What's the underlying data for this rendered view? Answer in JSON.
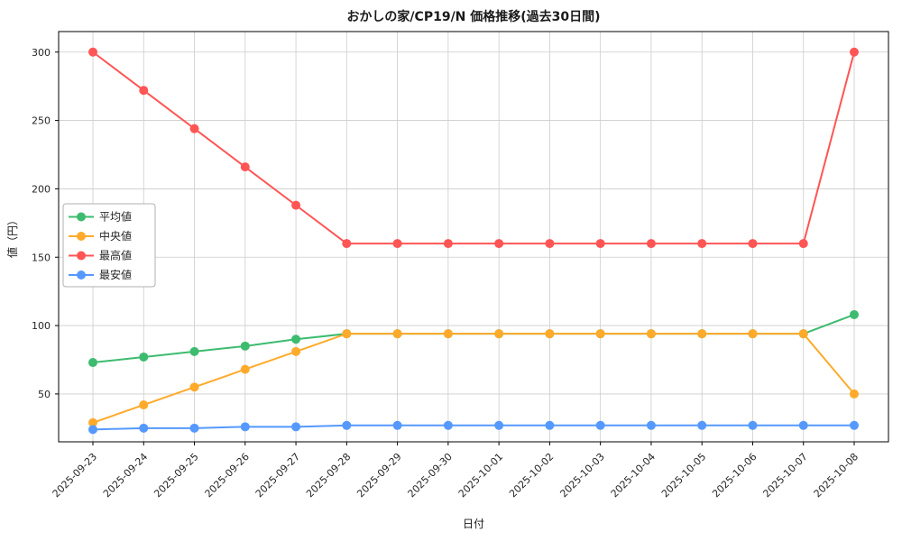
{
  "chart_data": {
    "type": "line",
    "title": "おかしの家/CP19/N 価格推移(過去30日間)",
    "xlabel": "日付",
    "ylabel": "値（円）",
    "x": [
      "2025-09-23",
      "2025-09-24",
      "2025-09-25",
      "2025-09-26",
      "2025-09-27",
      "2025-09-28",
      "2025-09-29",
      "2025-09-30",
      "2025-10-01",
      "2025-10-02",
      "2025-10-03",
      "2025-10-04",
      "2025-10-05",
      "2025-10-06",
      "2025-10-07",
      "2025-10-08"
    ],
    "series": [
      {
        "name": "平均値",
        "color": "#3dbb6f",
        "values": [
          73,
          77,
          81,
          85,
          90,
          94,
          94,
          94,
          94,
          94,
          94,
          94,
          94,
          94,
          94,
          108
        ]
      },
      {
        "name": "中央値",
        "color": "#ffaa2b",
        "values": [
          29,
          42,
          55,
          68,
          81,
          94,
          94,
          94,
          94,
          94,
          94,
          94,
          94,
          94,
          94,
          50
        ]
      },
      {
        "name": "最高値",
        "color": "#ff5555",
        "values": [
          300,
          272,
          244,
          216,
          188,
          160,
          160,
          160,
          160,
          160,
          160,
          160,
          160,
          160,
          160,
          300
        ]
      },
      {
        "name": "最安値",
        "color": "#5599ff",
        "values": [
          24,
          25,
          25,
          26,
          26,
          27,
          27,
          27,
          27,
          27,
          27,
          27,
          27,
          27,
          27,
          27
        ]
      }
    ],
    "yticks": [
      50,
      100,
      150,
      200,
      250,
      300
    ],
    "ylim": [
      15,
      315
    ],
    "grid": true,
    "grid_color": "#cccccc",
    "legend_position": "left-center",
    "legend_border_color": "#b0b0b0"
  }
}
